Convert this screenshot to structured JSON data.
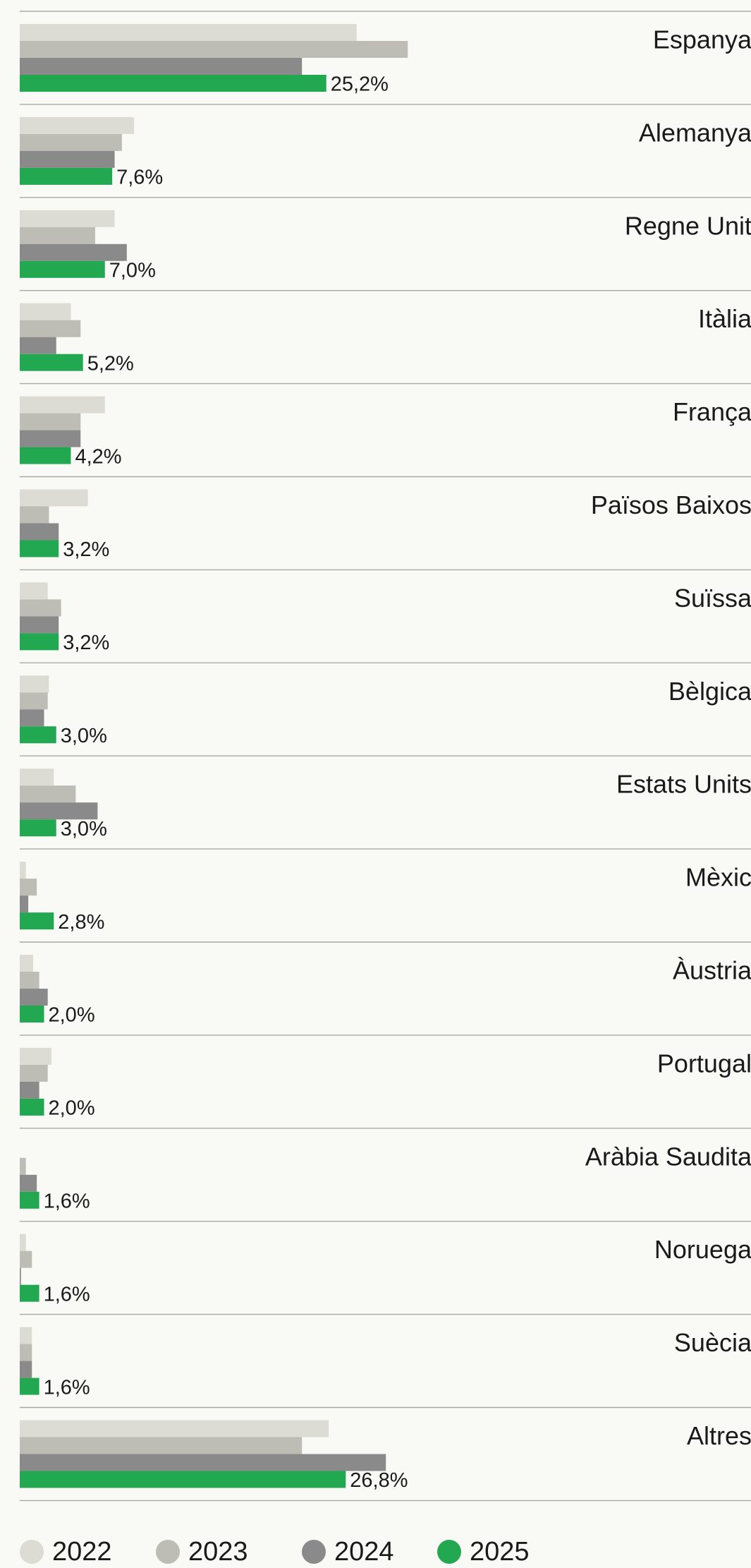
{
  "chart_data": {
    "type": "bar",
    "orientation": "horizontal",
    "categories": [
      "Espanya",
      "Alemanya",
      "Regne Unit",
      "Itàlia",
      "França",
      "Països Baixos",
      "Suïssa",
      "Bèlgica",
      "Estats Units",
      "Mèxic",
      "Àustria",
      "Portugal",
      "Aràbia Saudita",
      "Noruega",
      "Suècia",
      "Altres"
    ],
    "series": [
      {
        "name": "2022",
        "color": "#dcdcd4",
        "values": [
          27.7,
          9.4,
          7.8,
          4.2,
          7.0,
          5.6,
          2.3,
          2.4,
          2.8,
          0.5,
          1.1,
          2.6,
          0,
          0.5,
          1.0,
          25.4
        ]
      },
      {
        "name": "2023",
        "color": "#bdbdb5",
        "values": [
          31.9,
          8.4,
          6.2,
          5.0,
          5.0,
          2.4,
          3.4,
          2.3,
          4.6,
          1.4,
          1.6,
          2.3,
          0.5,
          1.0,
          1.0,
          23.2
        ]
      },
      {
        "name": "2024",
        "color": "#8a8a8a",
        "values": [
          23.2,
          7.8,
          8.8,
          3.0,
          5.0,
          3.2,
          3.2,
          2.0,
          6.4,
          0.7,
          2.3,
          1.6,
          1.4,
          0.1,
          1.0,
          30.1
        ]
      },
      {
        "name": "2025",
        "color": "#22a851",
        "values": [
          25.2,
          7.6,
          7.0,
          5.2,
          4.2,
          3.2,
          3.2,
          3.0,
          3.0,
          2.8,
          2.0,
          2.0,
          1.6,
          1.6,
          1.6,
          26.8
        ],
        "value_labels": [
          "25,2%",
          "7,6%",
          "7,0%",
          "5,2%",
          "4,2%",
          "3,2%",
          "3,2%",
          "3,0%",
          "3,0%",
          "2,8%",
          "2,0%",
          "2,0%",
          "1,6%",
          "1,6%",
          "1,6%",
          "26,8%"
        ]
      }
    ],
    "legend": "bottom-left"
  }
}
